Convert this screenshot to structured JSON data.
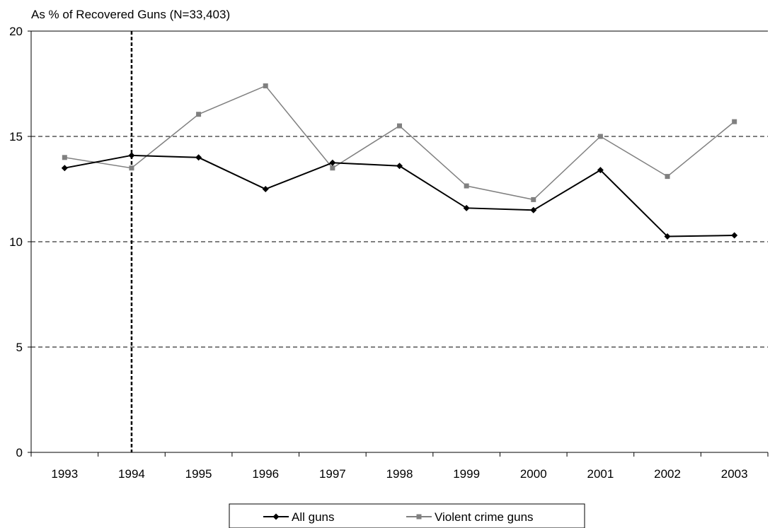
{
  "chart_data": {
    "type": "line",
    "title": "As % of Recovered Guns (N=33,403)",
    "categories": [
      "1993",
      "1994",
      "1995",
      "1996",
      "1997",
      "1998",
      "1999",
      "2000",
      "2001",
      "2002",
      "2003"
    ],
    "series": [
      {
        "name": "All guns",
        "color": "#000000",
        "marker": "diamond",
        "values": [
          13.5,
          14.1,
          14.0,
          12.5,
          13.75,
          13.6,
          11.6,
          11.5,
          13.4,
          10.25,
          10.3
        ]
      },
      {
        "name": "Violent crime guns",
        "color": "#808080",
        "marker": "square",
        "values": [
          14.0,
          13.5,
          16.05,
          17.4,
          13.5,
          15.5,
          12.65,
          12.0,
          15.0,
          13.1,
          15.7
        ]
      }
    ],
    "ylim": [
      0,
      20
    ],
    "yticks": [
      0,
      5,
      10,
      15,
      20
    ],
    "gridlines": [
      5,
      10,
      15
    ],
    "vertical_marker": "1994",
    "legend_position": "bottom-center"
  }
}
